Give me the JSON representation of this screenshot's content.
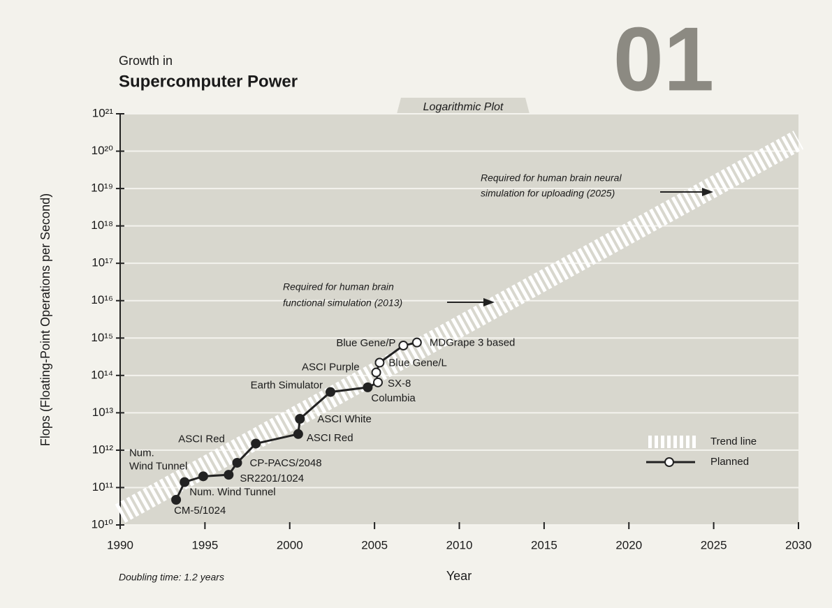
{
  "chart_data": {
    "type": "line",
    "title_top": "Growth in",
    "title": "Supercomputer Power",
    "logo": "01",
    "subtitle": "Logarithmic Plot",
    "xlabel": "Year",
    "ylabel": "Flops (Floating-Point Operations per Second)",
    "note": "Doubling time: 1.2 years",
    "yscale": "log",
    "xlim": [
      1990,
      2030
    ],
    "xticks": [
      1990,
      1995,
      2000,
      2005,
      2010,
      2015,
      2020,
      2025,
      2030
    ],
    "ylim": [
      10000000000.0,
      1e+21
    ],
    "yticks": [
      {
        "value": 10000000000.0,
        "label": "10¹⁰"
      },
      {
        "value": 100000000000.0,
        "label": "10¹¹"
      },
      {
        "value": 1000000000000.0,
        "label": "10¹²"
      },
      {
        "value": 10000000000000.0,
        "label": "10¹³"
      },
      {
        "value": 100000000000000.0,
        "label": "10¹⁴"
      },
      {
        "value": 1000000000000000.0,
        "label": "10¹⁵"
      },
      {
        "value": 1e+16,
        "label": "10¹⁶"
      },
      {
        "value": 1e+17,
        "label": "10¹⁷"
      },
      {
        "value": 1e+18,
        "label": "10¹⁸"
      },
      {
        "value": 1e+19,
        "label": "10¹⁹"
      },
      {
        "value": 1e+20,
        "label": "10²⁰"
      },
      {
        "value": 1e+21,
        "label": "10²¹"
      }
    ],
    "grid": true,
    "trend": {
      "name": "Trend line",
      "x": [
        1990,
        2030
      ],
      "values": [
        20000000000.0,
        2e+20
      ],
      "color": "#ffffff"
    },
    "series_name": "Planned",
    "color": "#222222",
    "points": [
      {
        "x": 1993.3,
        "y": 47000000000.0,
        "label": [
          "CM-5/1024"
        ],
        "planned": false
      },
      {
        "x": 1993.8,
        "y": 140000000000.0,
        "label": [
          "Num. Wind Tunnel"
        ],
        "planned": false
      },
      {
        "x": 1994.9,
        "y": 200000000000.0,
        "label": [
          "Num.",
          "Wind Tunnel"
        ],
        "planned": false
      },
      {
        "x": 1996.4,
        "y": 220000000000.0,
        "label": [
          "SR2201/1024"
        ],
        "planned": false
      },
      {
        "x": 1996.9,
        "y": 460000000000.0,
        "label": [
          "CP-PACS/2048"
        ],
        "planned": false
      },
      {
        "x": 1998.0,
        "y": 1500000000000.0,
        "label": [
          "ASCI Red"
        ],
        "planned": false
      },
      {
        "x": 2000.5,
        "y": 2700000000000.0,
        "label": [
          "ASCI Red"
        ],
        "planned": false
      },
      {
        "x": 2000.6,
        "y": 6900000000000.0,
        "label": [
          "ASCI White"
        ],
        "planned": false
      },
      {
        "x": 2002.4,
        "y": 36000000000000.0,
        "label": [
          "Earth Simulator"
        ],
        "planned": false
      },
      {
        "x": 2004.6,
        "y": 48000000000000.0,
        "label": [
          "Columbia"
        ],
        "planned": false
      },
      {
        "x": 2005.2,
        "y": 65000000000000.0,
        "label": [
          "SX-8"
        ],
        "planned": true
      },
      {
        "x": 2005.1,
        "y": 120000000000000.0,
        "label": [
          "ASCI Purple"
        ],
        "planned": true
      },
      {
        "x": 2005.3,
        "y": 220000000000000.0,
        "label": [
          "Blue Gene/L"
        ],
        "planned": true
      },
      {
        "x": 2006.7,
        "y": 630000000000000.0,
        "label": [
          "Blue Gene/P"
        ],
        "planned": true
      },
      {
        "x": 2007.5,
        "y": 760000000000000.0,
        "label": [
          "MDGrape 3 based"
        ],
        "planned": true
      }
    ],
    "annotations": [
      [
        "Required for human brain",
        "functional simulation (2013)"
      ],
      [
        "Required for human brain neural",
        "simulation for uploading (2025)"
      ]
    ]
  }
}
